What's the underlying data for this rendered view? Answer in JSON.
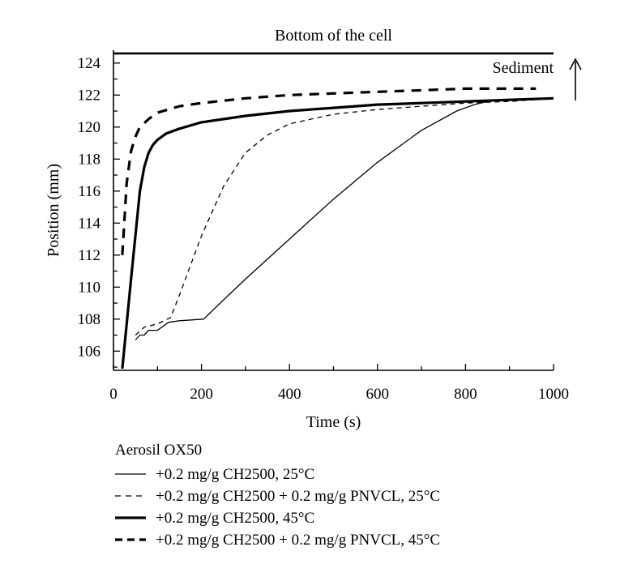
{
  "chart_data": {
    "type": "line",
    "title": "",
    "xlabel": "Time (s)",
    "ylabel": "Position (mm)",
    "xlim": [
      0,
      1000
    ],
    "ylim": [
      104.8,
      124.8
    ],
    "x_ticks": [
      0,
      200,
      400,
      600,
      800,
      1000
    ],
    "y_ticks": [
      106,
      108,
      110,
      112,
      114,
      116,
      118,
      120,
      122,
      124
    ],
    "grid": false,
    "legend_title": "Aerosil OX50",
    "legend_position": "bottom",
    "reference_line": {
      "y": 124.6,
      "label": "Bottom of the cell"
    },
    "annotation": {
      "label": "Sediment",
      "arrow": "up"
    },
    "series": [
      {
        "name": "+0.2 mg/g CH2500, 25°C",
        "style": "thin-solid",
        "x": [
          50,
          60,
          70,
          80,
          100,
          110,
          125,
          150,
          205,
          250,
          300,
          400,
          500,
          600,
          700,
          780,
          820,
          850,
          900,
          1000
        ],
        "y": [
          106.7,
          107.0,
          107.0,
          107.3,
          107.3,
          107.5,
          107.8,
          107.9,
          108.0,
          109.2,
          110.5,
          113.0,
          115.5,
          117.8,
          119.8,
          121.0,
          121.4,
          121.6,
          121.7,
          121.8
        ]
      },
      {
        "name": "+0.2 mg/g CH2500 + 0.2 mg/g PNVCL, 25°C",
        "style": "thin-dashed",
        "x": [
          50,
          70,
          100,
          130,
          150,
          200,
          250,
          300,
          350,
          400,
          500,
          600,
          700,
          800,
          900,
          1000
        ],
        "y": [
          107.0,
          107.5,
          107.7,
          108.1,
          109.5,
          113.2,
          116.3,
          118.4,
          119.5,
          120.2,
          120.8,
          121.1,
          121.3,
          121.5,
          121.6,
          121.8
        ]
      },
      {
        "name": "+0.2 mg/g CH2500, 45°C",
        "style": "thick-solid",
        "x": [
          20,
          40,
          60,
          70,
          80,
          90,
          100,
          120,
          150,
          200,
          300,
          400,
          500,
          600,
          700,
          800,
          900,
          1000
        ],
        "y": [
          104.9,
          110.5,
          116.0,
          117.5,
          118.4,
          118.9,
          119.2,
          119.6,
          119.9,
          120.3,
          120.7,
          121.0,
          121.2,
          121.4,
          121.5,
          121.6,
          121.7,
          121.8
        ]
      },
      {
        "name": "+0.2 mg/g CH2500 + 0.2 mg/g PNVCL, 45°C",
        "style": "thick-dashed",
        "x": [
          20,
          30,
          40,
          50,
          60,
          80,
          100,
          150,
          200,
          300,
          400,
          500,
          600,
          700,
          800,
          900,
          960
        ],
        "y": [
          112.0,
          116.5,
          118.5,
          119.4,
          120.0,
          120.5,
          120.9,
          121.3,
          121.5,
          121.8,
          122.0,
          122.1,
          122.2,
          122.3,
          122.4,
          122.4,
          122.4
        ]
      }
    ]
  }
}
